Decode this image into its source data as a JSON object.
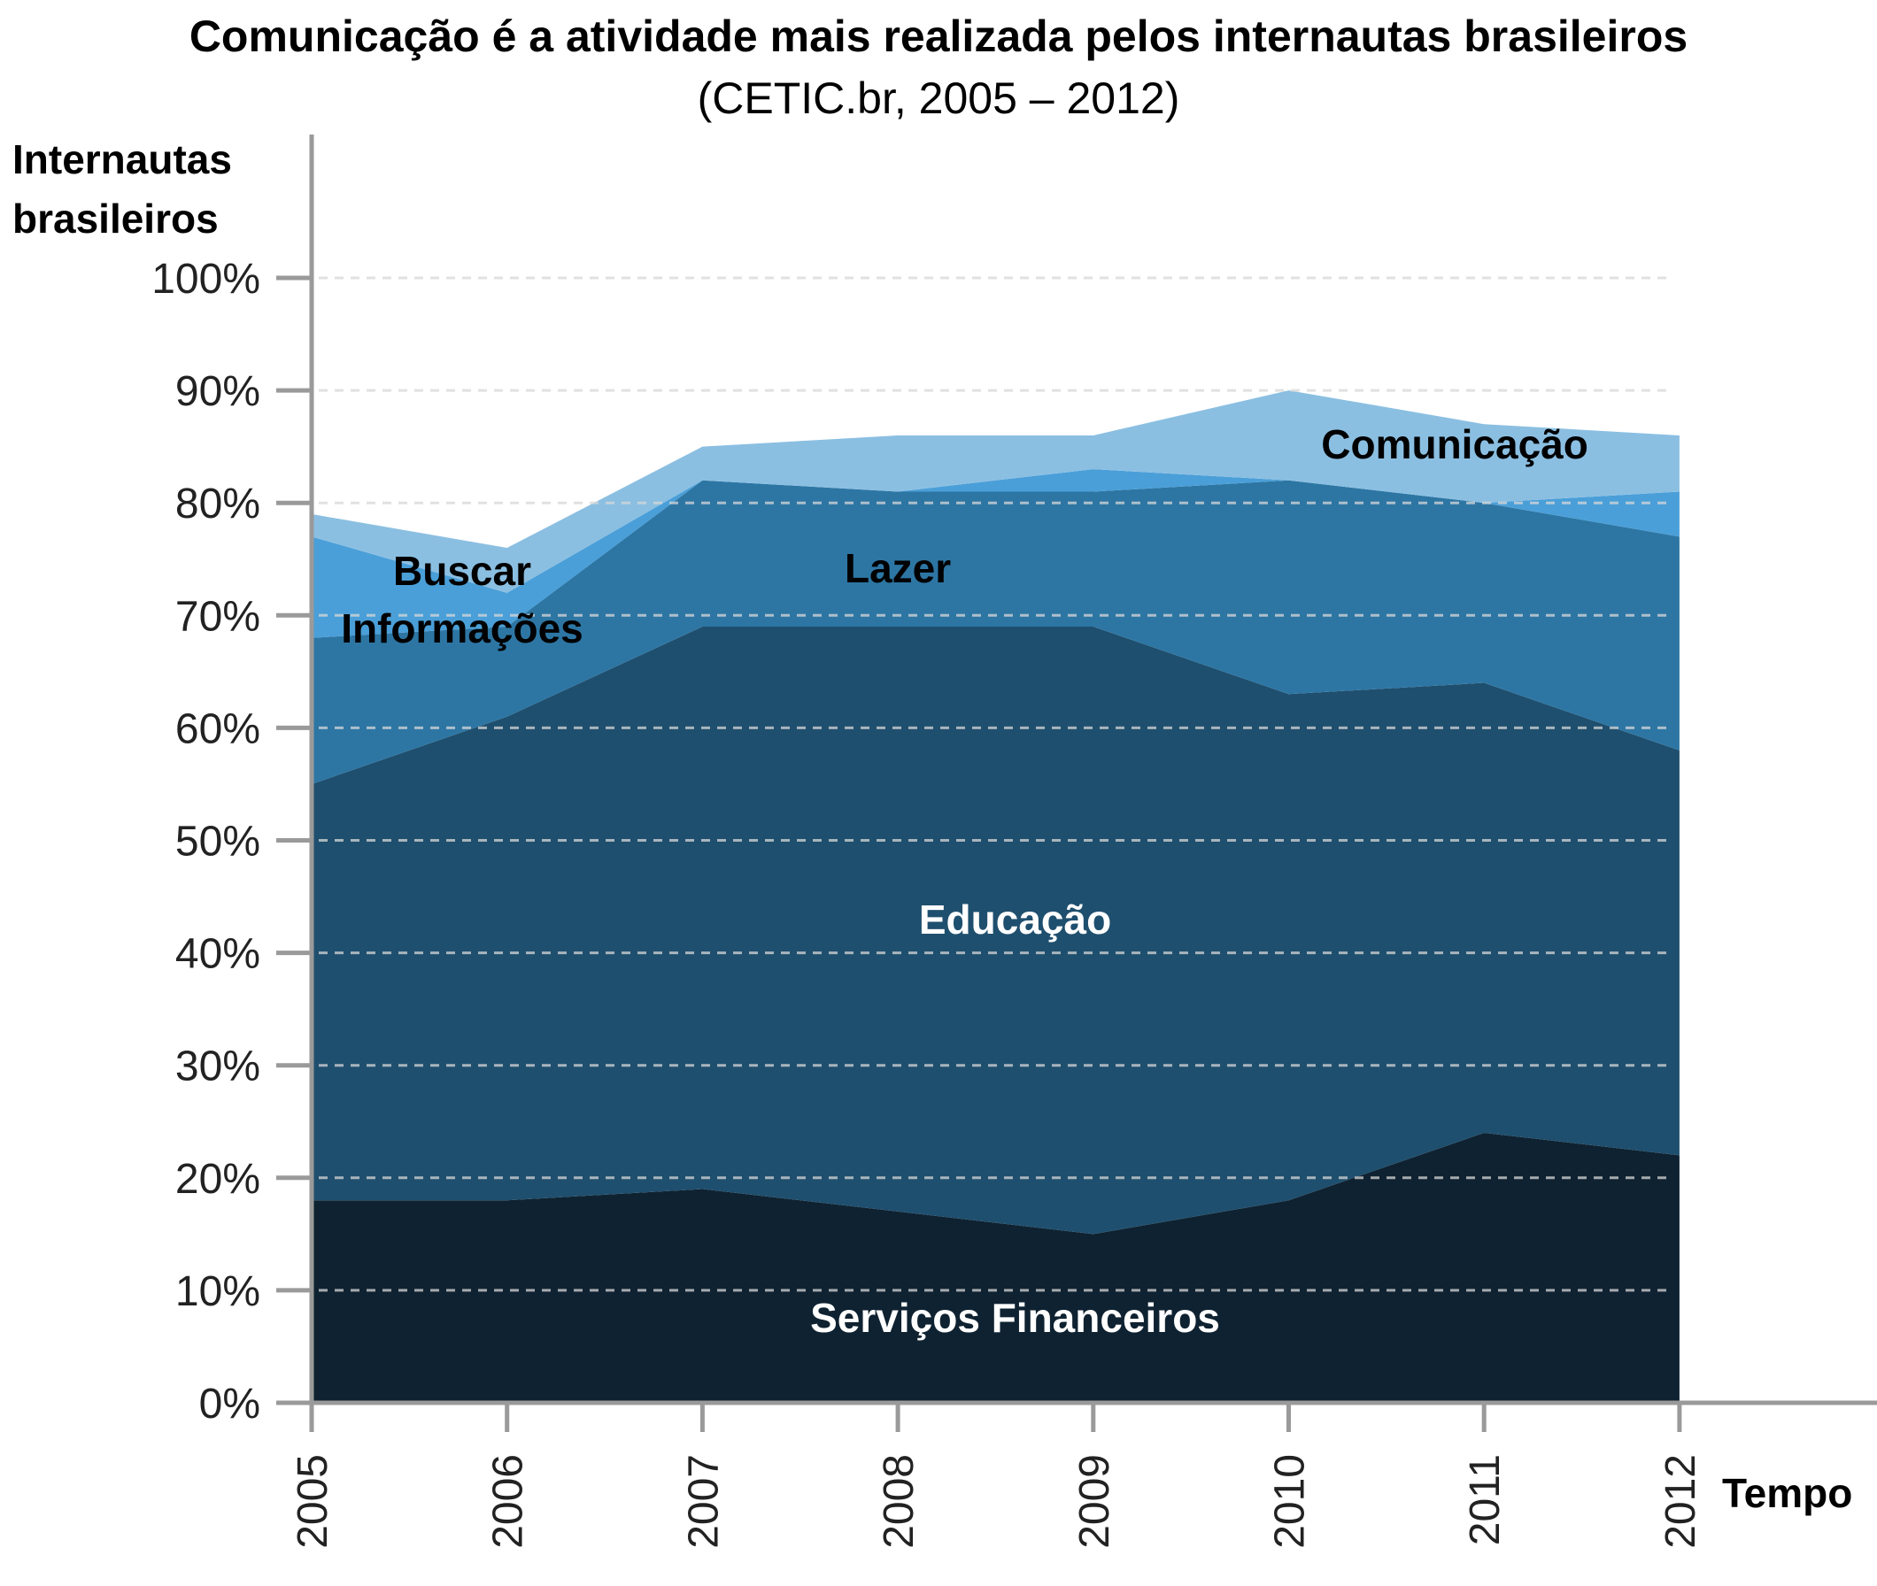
{
  "chart_data": {
    "type": "area",
    "stacked": true,
    "title": "Comunicação é a atividade mais realizada pelos internautas brasileiros",
    "subtitle": "(CETIC.br, 2005 – 2012)",
    "ylabel_line1": "Internautas",
    "ylabel_line2": "brasileiros",
    "xlabel": "Tempo",
    "x": [
      "2005",
      "2006",
      "2007",
      "2008",
      "2009",
      "2010",
      "2011",
      "2012"
    ],
    "ylim": [
      0,
      100
    ],
    "yticks": [
      "0%",
      "10%",
      "20%",
      "30%",
      "40%",
      "50%",
      "60%",
      "70%",
      "80%",
      "90%",
      "100%"
    ],
    "grid": true,
    "series": [
      {
        "name": "Serviços Financeiros",
        "color": "#0f2231",
        "label_color": "#ffffff",
        "values": [
          18,
          18,
          19,
          17,
          15,
          18,
          24,
          22
        ]
      },
      {
        "name": "Educação",
        "color": "#1f4f6e",
        "label_color": "#ffffff",
        "values": [
          37,
          43,
          50,
          52,
          54,
          45,
          40,
          36
        ]
      },
      {
        "name": "Lazer",
        "color": "#2d76a4",
        "label_color": "#000000",
        "values": [
          13,
          8,
          13,
          12,
          12,
          19,
          16,
          19
        ]
      },
      {
        "name": "Buscar Informações",
        "label_line1": "Buscar",
        "label_line2": "Informações",
        "color": "#4a9fd8",
        "label_color": "#000000",
        "values": [
          9,
          3,
          0,
          0,
          2,
          0,
          0,
          4
        ]
      },
      {
        "name": "Comunicação",
        "color": "#8bbfe2",
        "label_color": "#000000",
        "values": [
          2,
          4,
          3,
          5,
          3,
          8,
          7,
          5
        ]
      }
    ]
  }
}
